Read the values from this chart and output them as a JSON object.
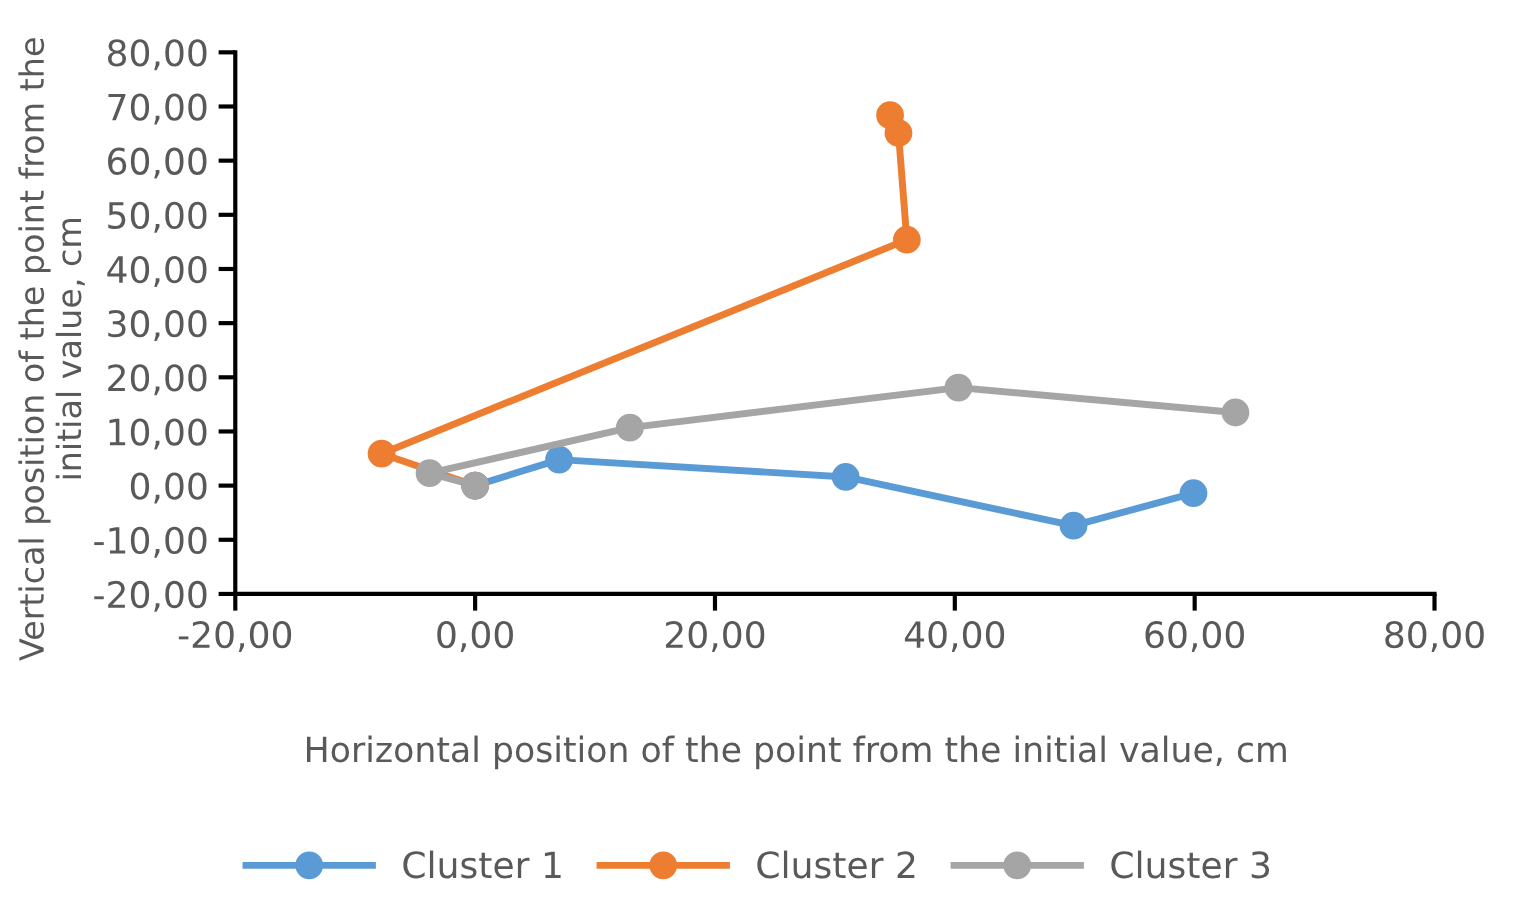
{
  "chart_data": {
    "type": "line",
    "xlabel": "Horizontal position of the point from the initial value, cm",
    "ylabel": "Vertical position of the point from the initial value, cm",
    "xlim": [
      -20,
      80
    ],
    "ylim": [
      -20,
      80
    ],
    "xticks": [
      {
        "value": -20,
        "label": "-20,00"
      },
      {
        "value": 0,
        "label": "0,00"
      },
      {
        "value": 20,
        "label": "20,00"
      },
      {
        "value": 40,
        "label": "40,00"
      },
      {
        "value": 60,
        "label": "60,00"
      },
      {
        "value": 80,
        "label": "80,00"
      }
    ],
    "yticks": [
      {
        "value": -20,
        "label": "-20,00"
      },
      {
        "value": -10,
        "label": "-10,00"
      },
      {
        "value": 0,
        "label": "0,00"
      },
      {
        "value": 10,
        "label": "10,00"
      },
      {
        "value": 20,
        "label": "20,00"
      },
      {
        "value": 30,
        "label": "30,00"
      },
      {
        "value": 40,
        "label": "40,00"
      },
      {
        "value": 50,
        "label": "50,00"
      },
      {
        "value": 60,
        "label": "60,00"
      },
      {
        "value": 70,
        "label": "70,00"
      },
      {
        "value": 80,
        "label": "80,00"
      }
    ],
    "series": [
      {
        "name": "Cluster 1",
        "color": "#5b9bd5",
        "x": [
          0,
          7.0,
          30.9,
          49.9,
          59.9
        ],
        "values": [
          0,
          4.8,
          1.6,
          -7.4,
          -1.4
        ]
      },
      {
        "name": "Cluster 2",
        "color": "#ed7d31",
        "x": [
          0,
          -7.8,
          36.0,
          35.3,
          34.6
        ],
        "values": [
          0,
          5.9,
          45.4,
          65.1,
          68.4
        ]
      },
      {
        "name": "Cluster 3",
        "color": "#a5a5a5",
        "x": [
          0,
          -3.8,
          12.9,
          40.3,
          63.4
        ],
        "values": [
          0,
          2.3,
          10.7,
          18.1,
          13.5
        ]
      }
    ],
    "marker": "circle",
    "line_style": "solid",
    "grid": false,
    "legend": "bottom"
  }
}
